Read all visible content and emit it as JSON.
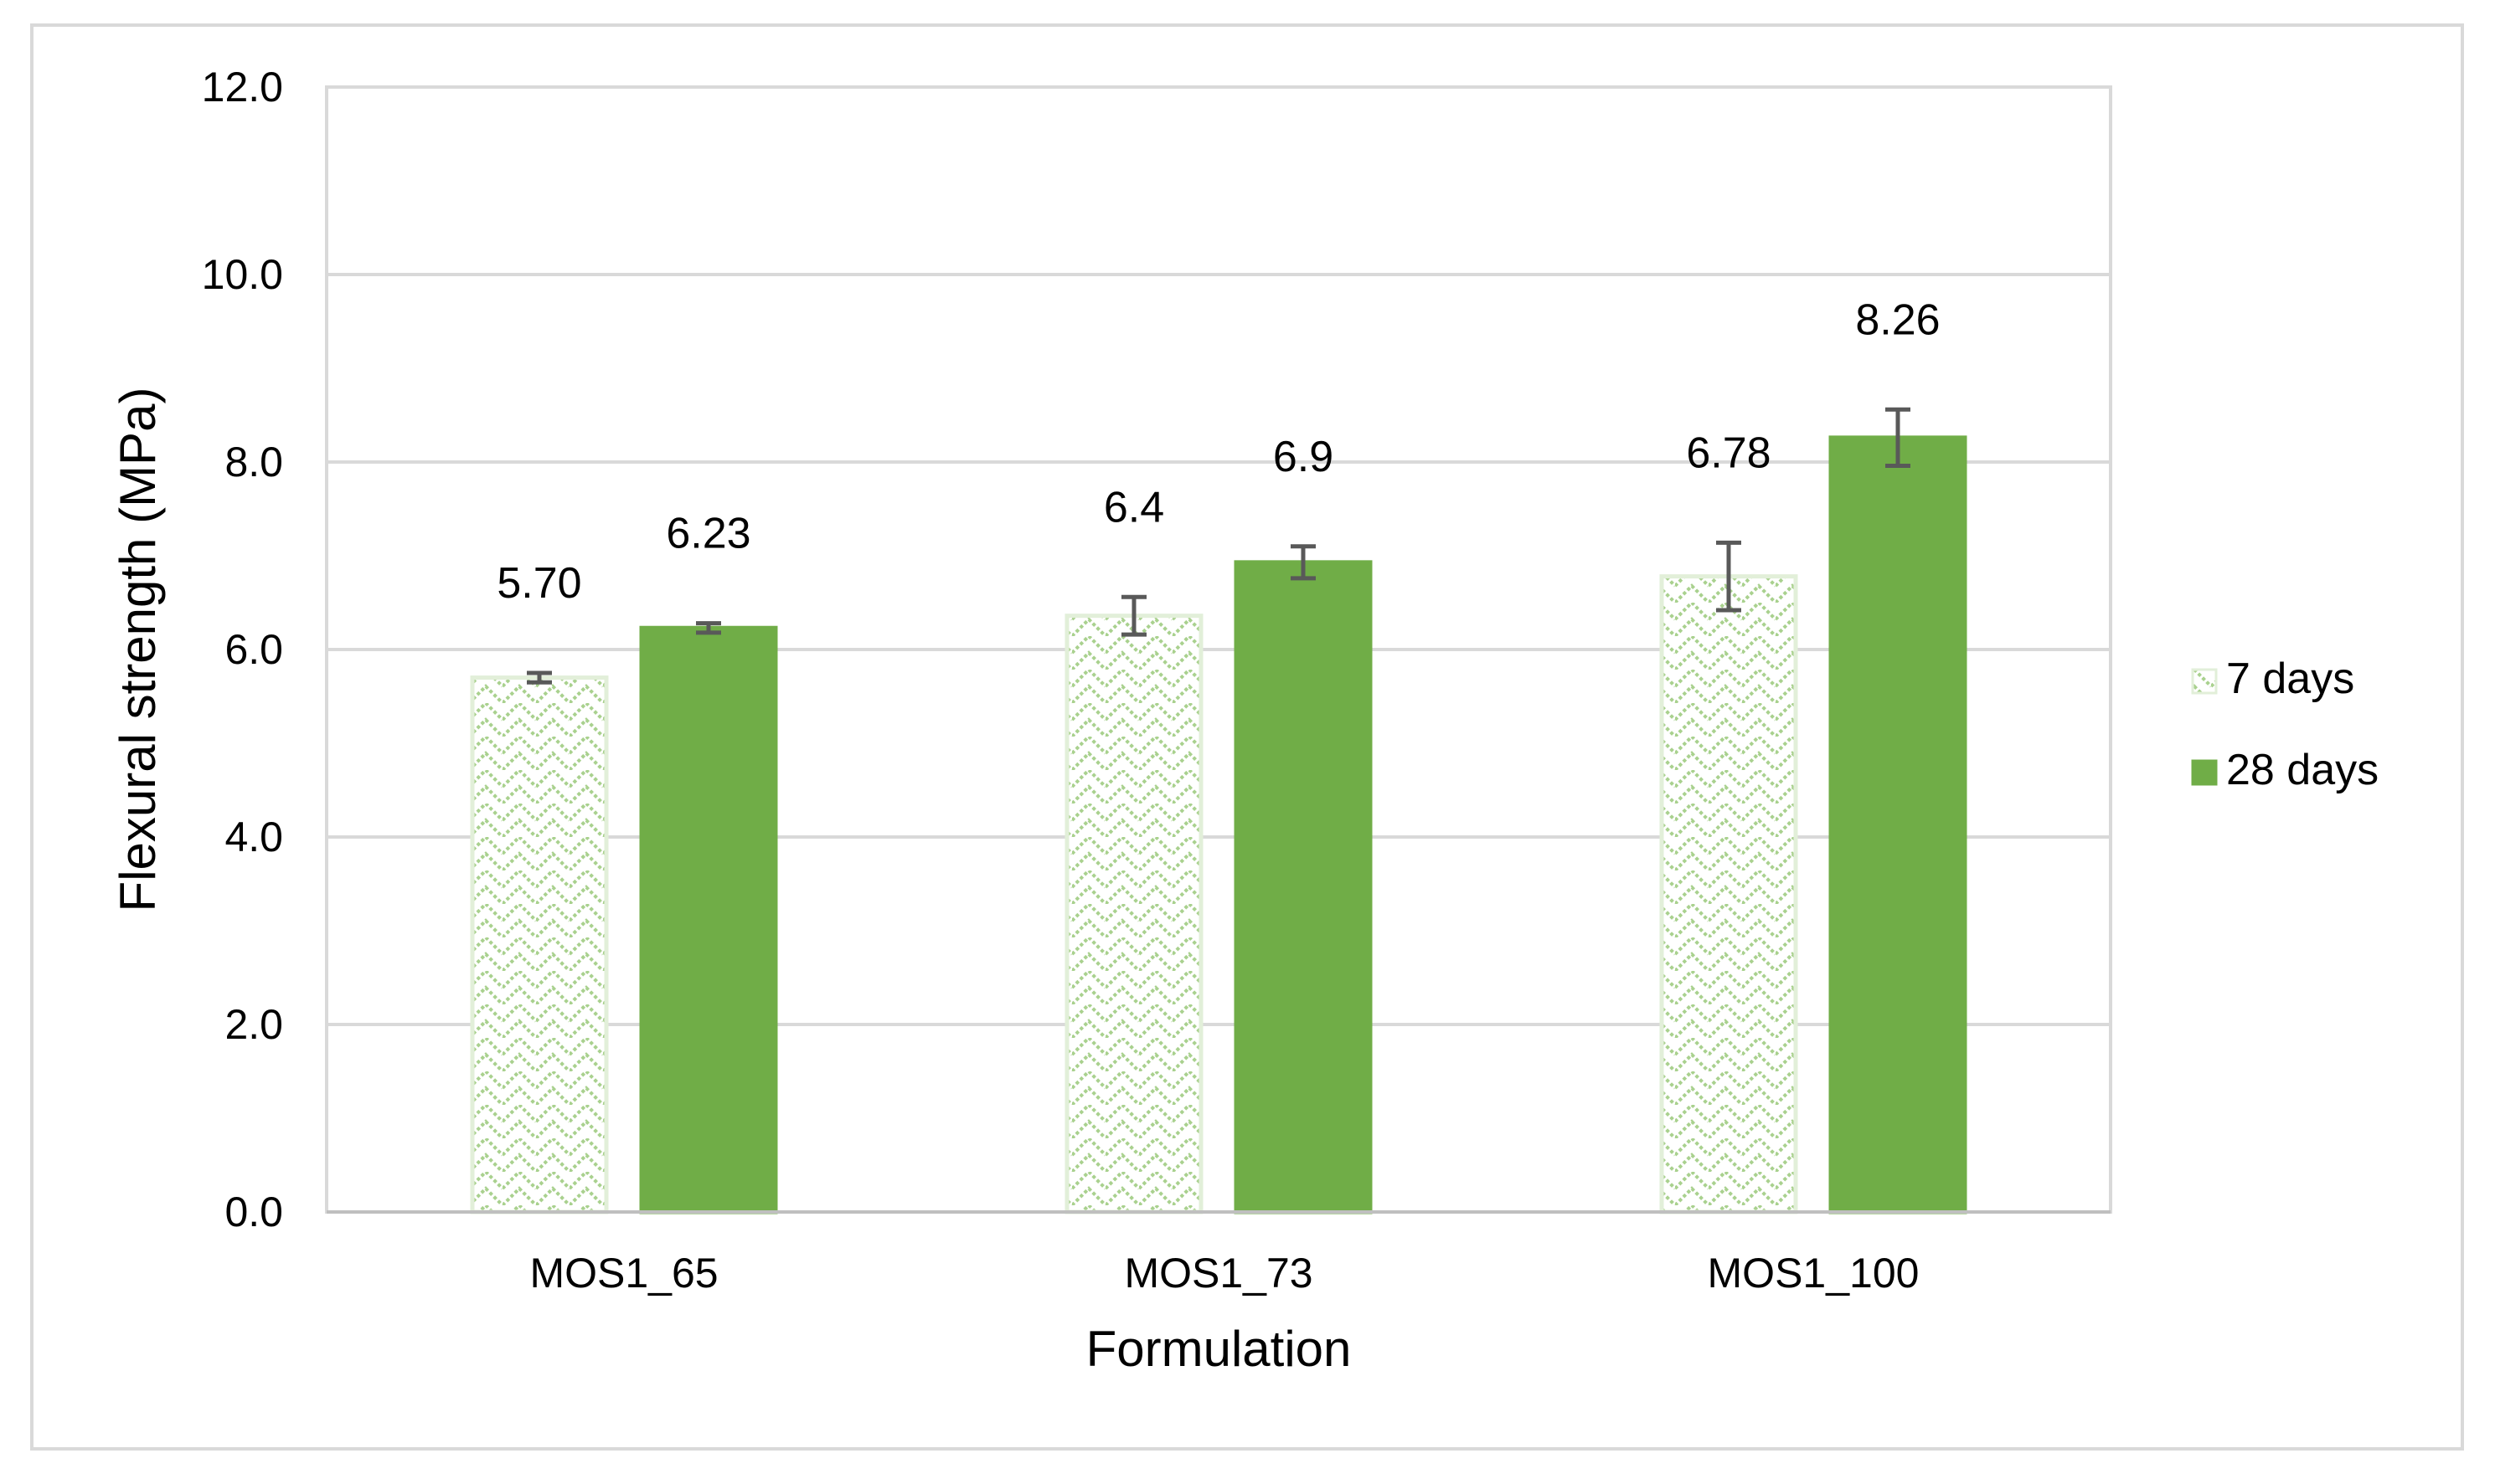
{
  "chart_data": {
    "type": "bar",
    "title": "",
    "xlabel": "Formulation",
    "ylabel": "Flexural strength (MPa)",
    "ylim": [
      0,
      12
    ],
    "yticks": [
      "0.0",
      "2.0",
      "4.0",
      "6.0",
      "8.0",
      "10.0",
      "12.0"
    ],
    "grid": true,
    "legend_position": "right",
    "categories": [
      "MOS1_65",
      "MOS1_73",
      "MOS1_100"
    ],
    "series": [
      {
        "name": "7 days",
        "values": [
          5.7,
          6.36,
          6.78
        ],
        "errors": [
          0.05,
          0.2,
          0.36
        ],
        "labels": [
          "5.70",
          "6.4",
          "6.78"
        ],
        "fill": "pattern",
        "color": "#a9d18e"
      },
      {
        "name": "28 days",
        "values": [
          6.23,
          6.93,
          8.26
        ],
        "errors": [
          0.05,
          0.17,
          0.3
        ],
        "labels": [
          "6.23",
          "6.9",
          "8.26"
        ],
        "fill": "solid",
        "color": "#70ad47"
      }
    ],
    "errorbar_color": "#595959",
    "gridline_color": "#d9d9d9"
  }
}
